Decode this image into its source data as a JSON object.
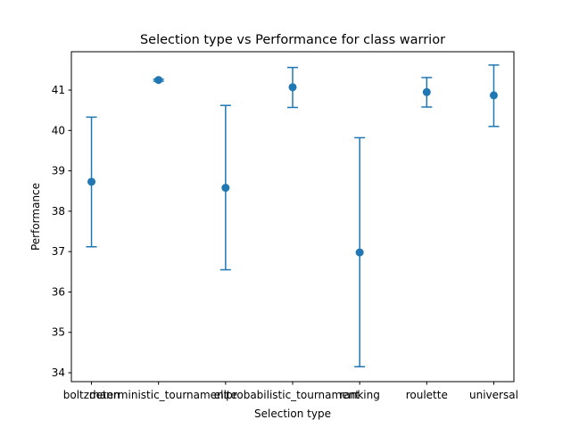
{
  "chart_data": {
    "type": "scatter",
    "title": "Selection type vs Performance for class warrior",
    "xlabel": "Selection type",
    "ylabel": "Performance",
    "categories": [
      "boltzmann",
      "deterministic_tournament",
      "elite",
      "probabilistic_tournament",
      "ranking",
      "roulette",
      "universal"
    ],
    "series": [
      {
        "values": [
          38.73,
          41.25,
          38.58,
          41.07,
          36.98,
          40.95,
          40.87
        ],
        "error_low": [
          37.12,
          41.22,
          36.55,
          40.57,
          34.15,
          40.58,
          40.1
        ],
        "error_high": [
          40.33,
          41.27,
          40.62,
          41.56,
          39.82,
          41.31,
          41.62
        ]
      }
    ],
    "yticks": [
      34,
      35,
      36,
      37,
      38,
      39,
      40,
      41
    ],
    "ylim": [
      33.78,
      41.95
    ],
    "grid": false,
    "legend": "none",
    "color": "#1f77b4"
  }
}
